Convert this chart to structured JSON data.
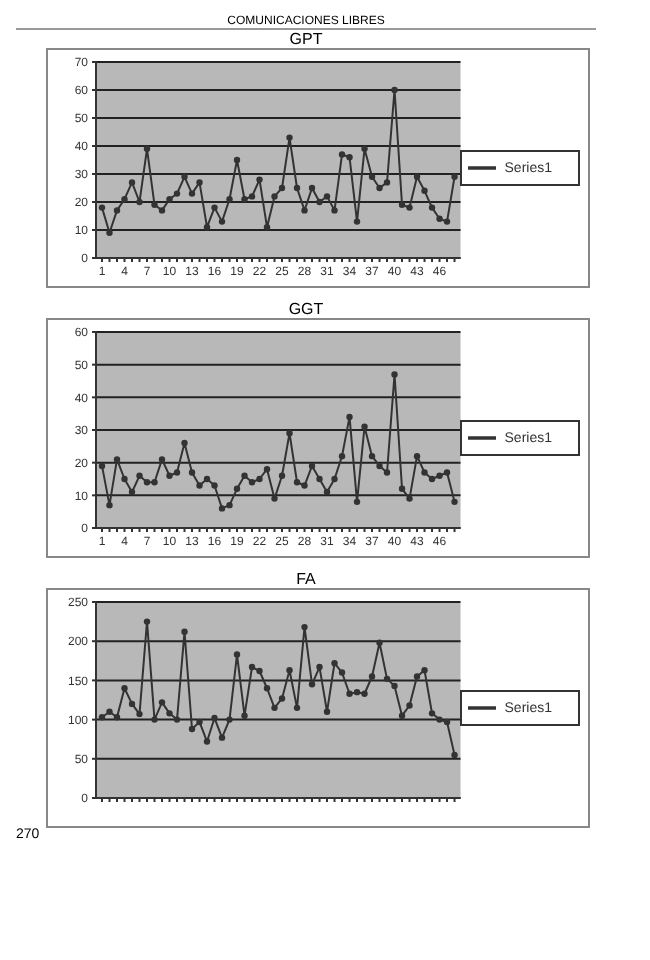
{
  "chart_data": [
    {
      "type": "line",
      "title": "GPT",
      "annotations": [
        "COMUNICACIONES LIBRES"
      ],
      "categories": [
        "1",
        null,
        null,
        "4",
        null,
        null,
        "7",
        null,
        null,
        "10",
        null,
        null,
        "13",
        null,
        null,
        "16",
        null,
        null,
        "19",
        null,
        null,
        "22",
        null,
        null,
        "25",
        null,
        null,
        "28",
        null,
        null,
        "31",
        null,
        null,
        "34",
        null,
        null,
        "37",
        null,
        null,
        "40",
        null,
        null,
        "43",
        null,
        null,
        "46",
        null,
        null
      ],
      "series": [
        {
          "name": "Series1",
          "color": "#333333",
          "values": [
            18,
            9,
            17,
            21,
            27,
            20,
            39,
            19,
            17,
            21,
            23,
            29,
            23,
            27,
            11,
            18,
            13,
            21,
            35,
            21,
            22,
            28,
            11,
            22,
            25,
            43,
            25,
            17,
            25,
            20,
            22,
            17,
            37,
            36,
            13,
            39,
            29,
            25,
            27,
            60,
            19,
            18,
            29,
            24,
            18,
            14,
            13,
            29
          ]
        }
      ],
      "ylim": [
        0,
        70
      ],
      "yticks": [
        0,
        10,
        20,
        30,
        40,
        50,
        60,
        70
      ],
      "grid": "y",
      "legend": "right",
      "marker": "circle"
    },
    {
      "type": "line",
      "title": "GGT",
      "categories": [
        "1",
        null,
        null,
        "4",
        null,
        null,
        "7",
        null,
        null,
        "10",
        null,
        null,
        "13",
        null,
        null,
        "16",
        null,
        null,
        "19",
        null,
        null,
        "22",
        null,
        null,
        "25",
        null,
        null,
        "28",
        null,
        null,
        "31",
        null,
        null,
        "34",
        null,
        null,
        "37",
        null,
        null,
        "40",
        null,
        null,
        "43",
        null,
        null,
        "46",
        null,
        null
      ],
      "series": [
        {
          "name": "Series1",
          "color": "#333333",
          "values": [
            19,
            7,
            21,
            15,
            11,
            16,
            14,
            14,
            21,
            16,
            17,
            26,
            17,
            13,
            15,
            13,
            6,
            7,
            12,
            16,
            14,
            15,
            18,
            9,
            16,
            29,
            14,
            13,
            19,
            15,
            11,
            15,
            22,
            34,
            8,
            31,
            22,
            19,
            17,
            47,
            12,
            9,
            22,
            17,
            15,
            16,
            17,
            8
          ]
        }
      ],
      "ylim": [
        0,
        60
      ],
      "yticks": [
        0,
        10,
        20,
        30,
        40,
        50,
        60
      ],
      "grid": "y",
      "legend": "right",
      "marker": "circle"
    },
    {
      "type": "line",
      "title": "FA",
      "annotations": [
        "270"
      ],
      "categories": [
        null,
        null,
        null,
        null,
        null,
        null,
        null,
        null,
        null,
        null,
        null,
        null,
        null,
        null,
        null,
        null,
        null,
        null,
        null,
        null,
        null,
        null,
        null,
        null,
        null,
        null,
        null,
        null,
        null,
        null,
        null,
        null,
        null,
        null,
        null,
        null,
        null,
        null,
        null,
        null,
        null,
        null,
        null,
        null,
        null,
        null,
        null,
        null
      ],
      "series": [
        {
          "name": "Series1",
          "color": "#333333",
          "values": [
            103,
            110,
            103,
            140,
            120,
            107,
            225,
            100,
            122,
            108,
            100,
            212,
            88,
            97,
            72,
            102,
            77,
            100,
            183,
            105,
            167,
            162,
            140,
            115,
            127,
            163,
            115,
            218,
            145,
            167,
            110,
            172,
            160,
            133,
            135,
            133,
            155,
            198,
            152,
            143,
            105,
            118,
            155,
            163,
            108,
            100,
            97,
            55
          ]
        }
      ],
      "ylim": [
        0,
        250
      ],
      "yticks": [
        0,
        50,
        100,
        150,
        200,
        250
      ],
      "grid": "y",
      "legend": "right",
      "marker": "circle"
    }
  ]
}
